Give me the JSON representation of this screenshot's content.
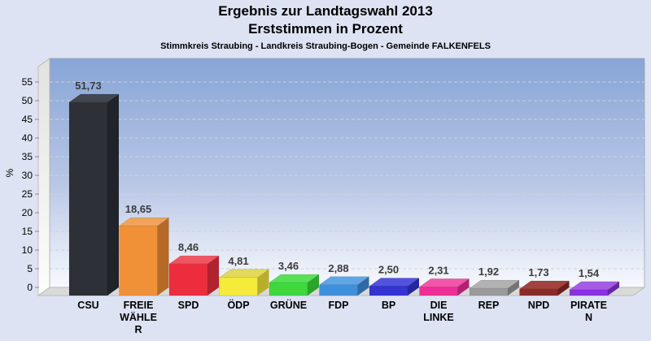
{
  "page": {
    "background": "#dde3f3"
  },
  "header": {
    "title_line1": "Ergebnis zur Landtagswahl 2013",
    "title_line2": "Erststimmen in Prozent",
    "subtitle": "Stimmkreis Straubing - Landkreis Straubing-Bogen - Gemeinde FALKENFELS"
  },
  "chart_data": {
    "type": "bar",
    "style": "3d-column",
    "title": "Ergebnis zur Landtagswahl 2013 - Erststimmen in Prozent",
    "xlabel": "",
    "ylabel": "%",
    "ylim": [
      0,
      55
    ],
    "y_ticks": [
      0,
      5,
      10,
      15,
      20,
      25,
      30,
      35,
      40,
      45,
      50,
      55
    ],
    "grid": "horizontal-dashed",
    "legend": "none",
    "categories": [
      "CSU",
      "FREIE WÄHLER",
      "SPD",
      "ÖDP",
      "GRÜNE",
      "FDP",
      "BP",
      "DIE LINKE",
      "REP",
      "NPD",
      "PIRATEN"
    ],
    "category_label_lines": [
      [
        "CSU"
      ],
      [
        "FREIE",
        "WÄHLE",
        "R"
      ],
      [
        "SPD"
      ],
      [
        "ÖDP"
      ],
      [
        "GRÜNE"
      ],
      [
        "FDP"
      ],
      [
        "BP"
      ],
      [
        "DIE",
        "LINKE"
      ],
      [
        "REP"
      ],
      [
        "NPD"
      ],
      [
        "PIRATE",
        "N"
      ]
    ],
    "values": [
      51.73,
      18.65,
      8.46,
      4.81,
      3.46,
      2.88,
      2.5,
      2.31,
      1.92,
      1.73,
      1.54
    ],
    "value_labels": [
      "51,73",
      "18,65",
      "8,46",
      "4,81",
      "3,46",
      "2,88",
      "2,50",
      "2,31",
      "1,92",
      "1,73",
      "1,54"
    ],
    "bar_colors": [
      {
        "front": "#2d3137",
        "top": "#42464e",
        "side": "#202329"
      },
      {
        "front": "#f09138",
        "top": "#f2a455",
        "side": "#b56a28"
      },
      {
        "front": "#ed2d3d",
        "top": "#ef5560",
        "side": "#b22330"
      },
      {
        "front": "#f4ec39",
        "top": "#e4da55",
        "side": "#b8ae2c"
      },
      {
        "front": "#3dd83c",
        "top": "#58e057",
        "side": "#2ca42b"
      },
      {
        "front": "#3e90dc",
        "top": "#61a5e4",
        "side": "#2e6ba6"
      },
      {
        "front": "#3434d4",
        "top": "#5252e0",
        "side": "#26269e"
      },
      {
        "front": "#ee2e95",
        "top": "#f156a9",
        "side": "#b22270"
      },
      {
        "front": "#9b9b9b",
        "top": "#b2b2b2",
        "side": "#757575"
      },
      {
        "front": "#8c2a28",
        "top": "#a14340",
        "side": "#671e1d"
      },
      {
        "front": "#8c30e0",
        "top": "#a55ae8",
        "side": "#6a24a8"
      }
    ],
    "plot_bg_gradient": [
      "#87a5d6",
      "#b9c7e6",
      "#f7f9fd"
    ],
    "wall_color": "#eeeeec",
    "floor_color": "#dadad8"
  }
}
